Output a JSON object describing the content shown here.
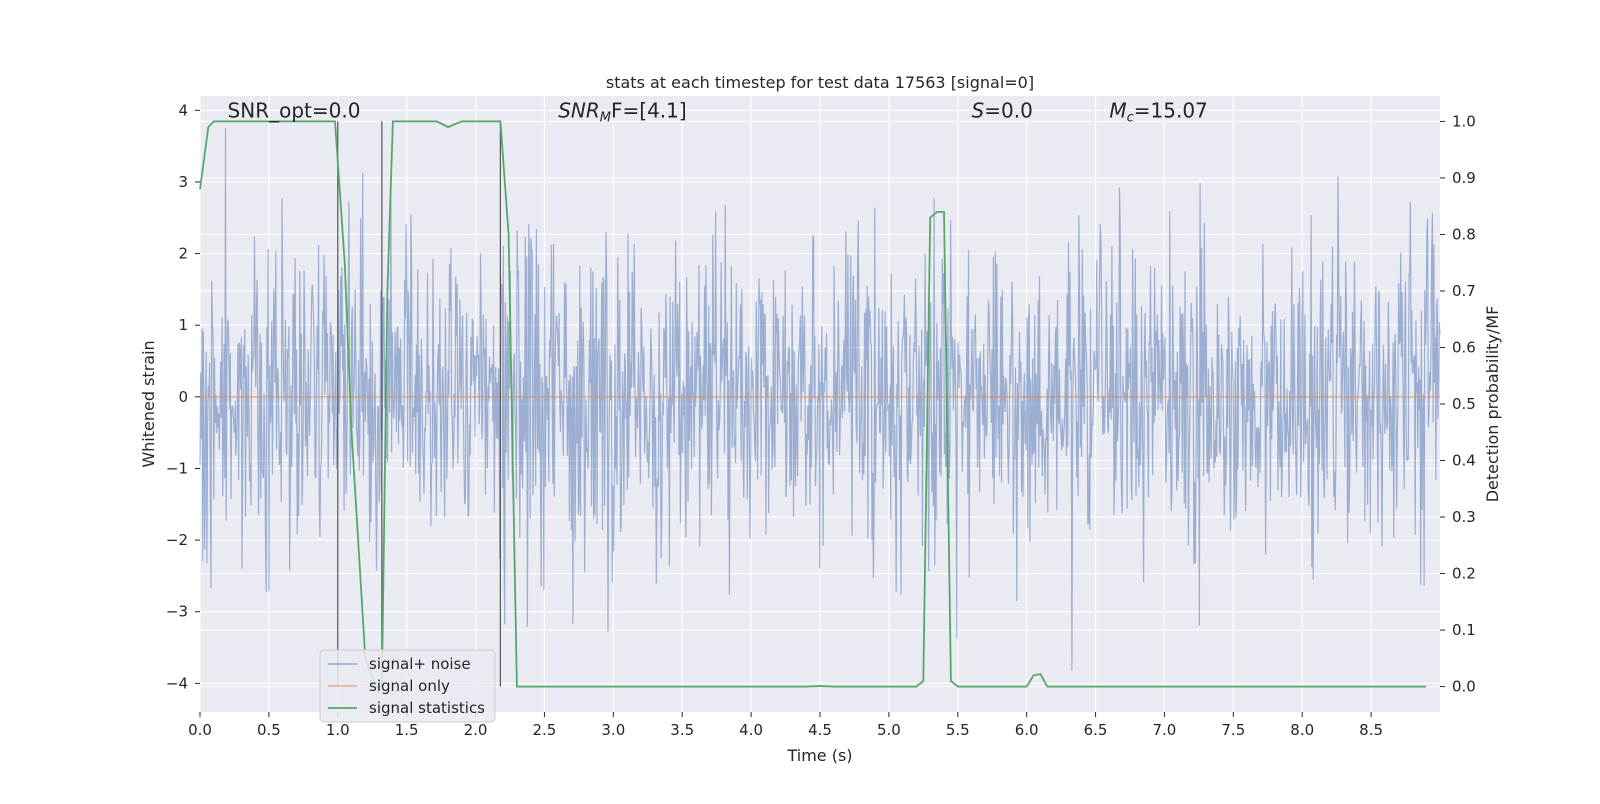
{
  "chart_data": {
    "type": "line",
    "title": "stats at each timestep for test data 17563 [signal=0]",
    "xlabel": "Time (s)",
    "ylabel_left": "Whitened strain",
    "ylabel_right": "Detection probability/MF",
    "xlim": [
      0,
      9.0
    ],
    "ylim_left": [
      -4.4,
      4.2
    ],
    "ylim_right": [
      -0.045,
      1.045
    ],
    "x_ticks": [
      "0.0",
      "0.5",
      "1.0",
      "1.5",
      "2.0",
      "2.5",
      "3.0",
      "3.5",
      "4.0",
      "4.5",
      "5.0",
      "5.5",
      "6.0",
      "6.5",
      "7.0",
      "7.5",
      "8.0",
      "8.5"
    ],
    "y_ticks_left": [
      "−4",
      "−3",
      "−2",
      "−1",
      "0",
      "1",
      "2",
      "3",
      "4"
    ],
    "y_ticks_right": [
      "0.0",
      "0.1",
      "0.2",
      "0.3",
      "0.4",
      "0.5",
      "0.6",
      "0.7",
      "0.8",
      "0.9",
      "1.0"
    ],
    "grid": true,
    "legend_position": "lower-left",
    "colors": {
      "noise": "#4c72b0",
      "signal": "#dd8452",
      "stats": "#55a868",
      "background": "#eaeaf2",
      "vline": "#555555"
    },
    "annotations": [
      {
        "text": "SNR_opt=0.0",
        "x": 0.2,
        "y": 4.0
      },
      {
        "text_main": "SNR",
        "text_sub": "M",
        "text_rest": "F=[4.1]",
        "x": 2.6,
        "y": 4.0
      },
      {
        "text_main": "S",
        "text_rest": "=0.0",
        "x": 5.6,
        "y": 4.0
      },
      {
        "text_main": "M",
        "text_sub": "c",
        "text_rest": "=15.07",
        "x": 6.6,
        "y": 4.0
      }
    ],
    "vertical_lines": [
      1.0,
      1.32,
      2.18
    ],
    "series": [
      {
        "name": "signal+ noise",
        "axis": "left",
        "description_values": "whitened gaussian noise, amplitude ~±1.5 typical, peaks to ~±3.7",
        "seed": 17563,
        "n_points": 1800
      },
      {
        "name": "signal only",
        "axis": "left",
        "x": [
          0,
          9.0
        ],
        "y": [
          0,
          0
        ]
      },
      {
        "name": "signal statistics",
        "axis": "right",
        "x": [
          0.0,
          0.06,
          0.1,
          0.15,
          0.25,
          0.4,
          0.6,
          0.8,
          0.98,
          1.05,
          1.1,
          1.2,
          1.28,
          1.32,
          1.36,
          1.4,
          1.5,
          1.6,
          1.72,
          1.8,
          1.9,
          2.0,
          2.1,
          2.18,
          2.24,
          2.3,
          2.35,
          2.4,
          2.6,
          3.0,
          3.5,
          4.0,
          4.4,
          4.5,
          4.6,
          5.0,
          5.2,
          5.25,
          5.3,
          5.35,
          5.4,
          5.45,
          5.5,
          5.6,
          6.0,
          6.05,
          6.1,
          6.15,
          6.2,
          6.3,
          7.0,
          8.0,
          8.9
        ],
        "y": [
          0.88,
          0.99,
          1.0,
          1.0,
          1.0,
          1.0,
          1.0,
          1.0,
          1.0,
          0.75,
          0.45,
          0.05,
          0.0,
          0.0,
          0.7,
          1.0,
          1.0,
          1.0,
          1.0,
          0.99,
          1.0,
          1.0,
          1.0,
          1.0,
          0.8,
          0.0,
          0.0,
          0.0,
          0.0,
          0.0,
          0.0,
          0.0,
          0.0,
          0.001,
          0.0,
          0.0,
          0.0,
          0.01,
          0.83,
          0.84,
          0.84,
          0.01,
          0.0,
          0.0,
          0.0,
          0.02,
          0.022,
          0.0,
          0.0,
          0.0,
          0.0,
          0.0,
          0.0
        ]
      }
    ]
  }
}
